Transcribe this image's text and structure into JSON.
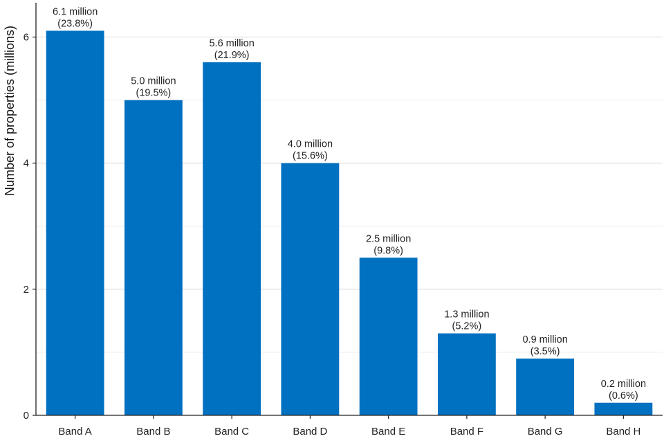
{
  "chart_data": {
    "type": "bar",
    "title": "",
    "xlabel": "",
    "ylabel": "Number of properties (millions)",
    "ylim": [
      0,
      6.5
    ],
    "yticks": [
      0,
      2,
      4,
      6
    ],
    "grid": "horizontal",
    "bar_color": "#0070c0",
    "categories": [
      "Band A",
      "Band B",
      "Band C",
      "Band D",
      "Band E",
      "Band F",
      "Band G",
      "Band H"
    ],
    "values": [
      6.1,
      5.0,
      5.6,
      4.0,
      2.5,
      1.3,
      0.9,
      0.2
    ],
    "value_labels": [
      "6.1 million",
      "5.0 million",
      "5.6 million",
      "4.0 million",
      "2.5 million",
      "1.3 million",
      "0.9 million",
      "0.2 million"
    ],
    "percent_labels": [
      "(23.8%)",
      "(19.5%)",
      "(21.9%)",
      "(15.6%)",
      "(9.8%)",
      "(5.2%)",
      "(3.5%)",
      "(0.6%)"
    ]
  }
}
